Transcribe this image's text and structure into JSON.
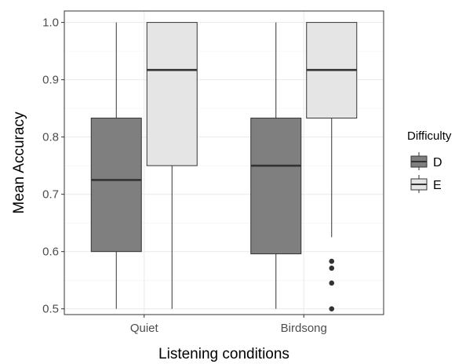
{
  "chart_data": {
    "type": "boxplot",
    "xlabel": "Listening conditions",
    "ylabel": "Mean Accuracy",
    "categories": [
      "Quiet",
      "Birdsong"
    ],
    "ylim": [
      0.49,
      1.02
    ],
    "yticks": [
      "0.5",
      "0.6",
      "0.7",
      "0.8",
      "0.9",
      "1.0"
    ],
    "ytick_values": [
      0.5,
      0.6,
      0.7,
      0.8,
      0.9,
      1.0
    ],
    "grid": true,
    "legend": {
      "title": "Difficulty",
      "placement": "right",
      "entries": [
        "D",
        "E"
      ]
    },
    "series": [
      {
        "name": "D",
        "color": "#7f7f7f",
        "boxes": [
          {
            "category": "Quiet",
            "whisker_low": 0.5,
            "q1": 0.6,
            "median": 0.725,
            "q3": 0.833,
            "whisker_high": 1.0,
            "outliers": []
          },
          {
            "category": "Birdsong",
            "whisker_low": 0.5,
            "q1": 0.596,
            "median": 0.75,
            "q3": 0.833,
            "whisker_high": 1.0,
            "outliers": []
          }
        ]
      },
      {
        "name": "E",
        "color": "#e5e5e5",
        "boxes": [
          {
            "category": "Quiet",
            "whisker_low": 0.5,
            "q1": 0.75,
            "median": 0.917,
            "q3": 1.0,
            "whisker_high": 1.0,
            "outliers": []
          },
          {
            "category": "Birdsong",
            "whisker_low": 0.625,
            "q1": 0.833,
            "median": 0.917,
            "q3": 1.0,
            "whisker_high": 1.0,
            "outliers": [
              0.583,
              0.571,
              0.545,
              0.5
            ]
          }
        ]
      }
    ]
  }
}
